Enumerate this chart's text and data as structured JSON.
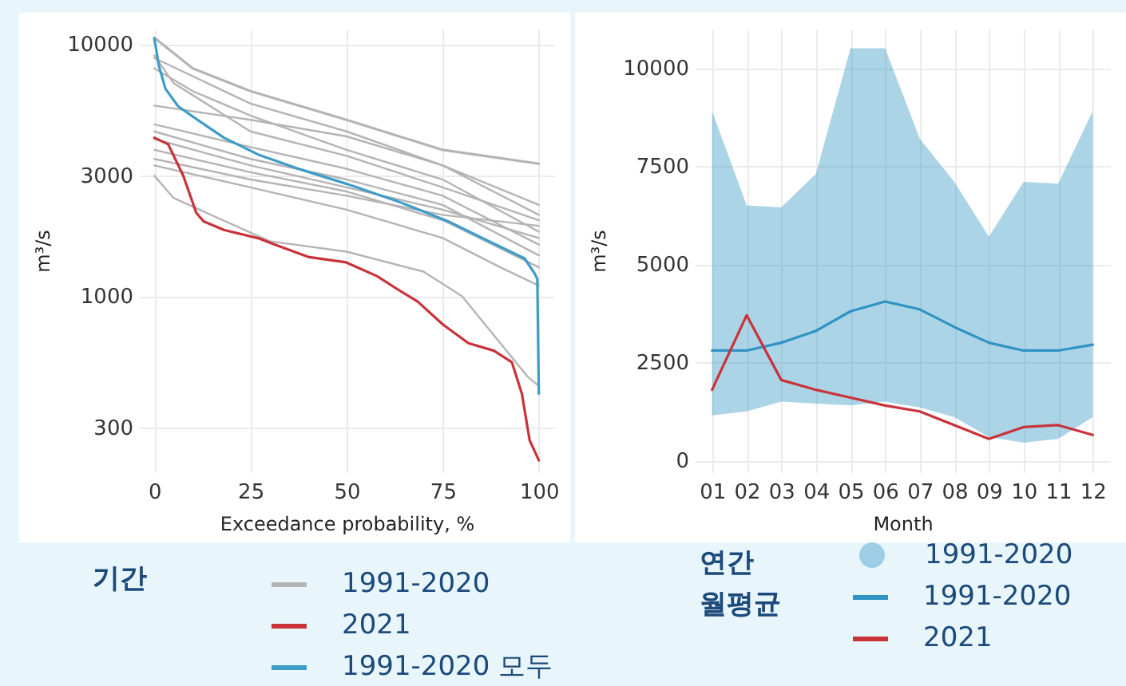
{
  "chart_data": [
    {
      "type": "line",
      "xlabel": "Exceedance probability, %",
      "ylabel": "m³/s",
      "log": "y",
      "xlim": [
        -4,
        104
      ],
      "xticks": [
        0,
        25,
        50,
        75,
        100
      ],
      "ylim": [
        200,
        11500
      ],
      "yticks": [
        300,
        1000,
        3000,
        10000
      ],
      "grid": true,
      "legend": "bottom",
      "legend_title": "기간",
      "series": [
        {
          "name": "1991-2020",
          "color": "#b4b4b4",
          "x": [
            0,
            10,
            25,
            50,
            75,
            100
          ],
          "values": [
            10600,
            8000,
            6500,
            5000,
            3800,
            3350
          ]
        },
        {
          "color": "#b4b4b4",
          "x": [
            0,
            25,
            50,
            75,
            100
          ],
          "values": [
            8800,
            5800,
            4500,
            3300,
            2300
          ]
        },
        {
          "color": "#b4b4b4",
          "x": [
            0,
            25,
            50,
            75,
            100
          ],
          "values": [
            5700,
            5000,
            4300,
            3300,
            2100
          ]
        },
        {
          "color": "#b4b4b4",
          "x": [
            0,
            10,
            25,
            50,
            75,
            100
          ],
          "values": [
            8000,
            6500,
            5200,
            3800,
            2900,
            1800
          ]
        },
        {
          "color": "#b4b4b4",
          "x": [
            0,
            5,
            25,
            50,
            75,
            100
          ],
          "values": [
            9000,
            7000,
            4500,
            3600,
            2700,
            2000
          ]
        },
        {
          "color": "#b4b4b4",
          "x": [
            0,
            25,
            50,
            75,
            100
          ],
          "values": [
            4800,
            3900,
            3200,
            2500,
            1600
          ]
        },
        {
          "color": "#b4b4b4",
          "x": [
            0,
            25,
            50,
            75,
            100
          ],
          "values": [
            4500,
            3500,
            2900,
            2300,
            1450
          ]
        },
        {
          "color": "#b4b4b4",
          "x": [
            0,
            25,
            50,
            75,
            100
          ],
          "values": [
            4200,
            3300,
            2700,
            2200,
            1700
          ]
        },
        {
          "color": "#b4b4b4",
          "x": [
            0,
            25,
            50,
            75,
            100
          ],
          "values": [
            3800,
            3100,
            2600,
            2000,
            1300
          ]
        },
        {
          "color": "#b4b4b4",
          "x": [
            0,
            25,
            50,
            75,
            100
          ],
          "values": [
            3500,
            2900,
            2500,
            2100,
            1900
          ]
        },
        {
          "color": "#b4b4b4",
          "x": [
            0,
            25,
            50,
            75,
            90,
            100
          ],
          "values": [
            3300,
            2700,
            2200,
            1700,
            1300,
            1100
          ]
        },
        {
          "color": "#b4b4b4",
          "x": [
            0,
            5,
            30,
            50,
            70,
            80,
            90,
            97,
            100
          ],
          "values": [
            3000,
            2450,
            1650,
            1500,
            1250,
            1000,
            650,
            480,
            440
          ]
        },
        {
          "name": "2021",
          "color": "#c8333a",
          "x": [
            0,
            3.6,
            7.5,
            10.9,
            12.8,
            18.1,
            27.4,
            31.4,
            40,
            49.9,
            57.9,
            63.2,
            68.5,
            75.1,
            81.7,
            88.3,
            93,
            95.6,
            97.6,
            100
          ],
          "values": [
            4250,
            4000,
            3010,
            2140,
            1980,
            1830,
            1690,
            1600,
            1430,
            1360,
            1200,
            1065,
            950,
            770,
            650,
            607,
            546,
            409,
            268,
            223
          ]
        },
        {
          "name": "1991-2020 모두",
          "color": "#3d9cc8",
          "x": [
            0,
            0.5,
            1.2,
            2.9,
            6.2,
            11.5,
            18.1,
            27.4,
            38,
            49.9,
            63.2,
            76.4,
            87,
            96.3,
            98.9,
            99.6,
            100
          ],
          "values": [
            10500,
            9500,
            8180,
            6640,
            5660,
            4970,
            4250,
            3620,
            3180,
            2790,
            2380,
            1980,
            1650,
            1410,
            1230,
            1170,
            410
          ]
        }
      ]
    },
    {
      "type": "line",
      "xlabel": "Month",
      "ylabel": "m³/s",
      "categories": [
        "01",
        "02",
        "03",
        "04",
        "05",
        "06",
        "07",
        "08",
        "09",
        "10",
        "11",
        "12"
      ],
      "ylim": [
        -300,
        11000
      ],
      "yticks": [
        0,
        2500,
        5000,
        7500,
        10000
      ],
      "grid": true,
      "legend": "bottom",
      "legend_title": "연간 월평균",
      "series": [
        {
          "name": "1991-2020",
          "color": "#2f93c4",
          "values": [
            2800,
            2800,
            3000,
            3300,
            3800,
            4050,
            3850,
            3400,
            3000,
            2800,
            2800,
            2950
          ],
          "lower": [
            1150,
            1250,
            1500,
            1450,
            1400,
            1500,
            1350,
            1100,
            600,
            450,
            550,
            1100
          ],
          "upper": [
            8900,
            6500,
            6450,
            7300,
            10500,
            10500,
            8200,
            7100,
            5700,
            7100,
            7050,
            8900
          ]
        },
        {
          "name": "2021",
          "color": "#c8333a",
          "values": [
            1800,
            3700,
            2050,
            1800,
            1600,
            1400,
            1250,
            900,
            550,
            850,
            900,
            650
          ]
        }
      ]
    }
  ]
}
